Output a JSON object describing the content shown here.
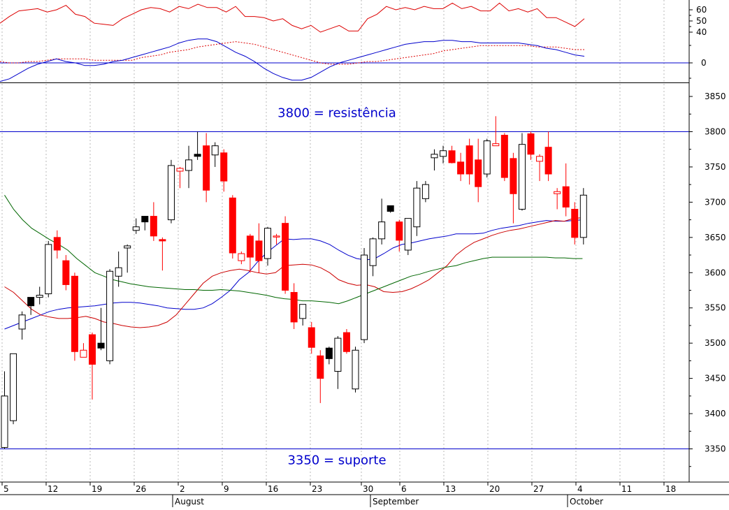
{
  "chart_data": [
    {
      "type": "line",
      "panel": "oscillator",
      "y_ticks_upper": [
        60,
        50,
        40
      ],
      "y_ticks_lower": [
        0
      ],
      "grid": "vertical dotted",
      "series": [
        {
          "name": "",
          "color": "#dd0000",
          "values": [
            48,
            54,
            59,
            60,
            61,
            58,
            60,
            64,
            56,
            54,
            48,
            47,
            46,
            52,
            56,
            60,
            62,
            61,
            58,
            63,
            61,
            65,
            62,
            62,
            58,
            63,
            54,
            54,
            53,
            50,
            52,
            46,
            43,
            46,
            40,
            43,
            46,
            41,
            41,
            52,
            56,
            63,
            60,
            62,
            60,
            63,
            61,
            61,
            66,
            61,
            63,
            59,
            59,
            66,
            59,
            61,
            58,
            61,
            53,
            53,
            49,
            45,
            52
          ]
        },
        {
          "name": "",
          "color": "#dd0000",
          "dashed": true,
          "values": [
            1,
            0,
            0,
            1,
            1,
            2,
            3,
            3,
            3,
            3,
            2,
            2,
            2,
            2,
            2,
            4,
            5,
            6,
            8,
            9,
            10,
            12,
            13,
            14,
            15,
            16,
            15,
            14,
            12,
            10,
            8,
            6,
            4,
            2,
            0,
            -1,
            -1,
            -1,
            0,
            1,
            1,
            2,
            3,
            4,
            5,
            6,
            7,
            9,
            10,
            11,
            12,
            13,
            13,
            13,
            13,
            13,
            13,
            12,
            12,
            12,
            11,
            10,
            10
          ]
        },
        {
          "name": "",
          "color": "#0000cc",
          "values": [
            -14,
            -12,
            -8,
            -4,
            -1,
            1,
            3,
            1,
            0,
            -2,
            -2,
            -1,
            1,
            2,
            4,
            6,
            8,
            10,
            12,
            15,
            17,
            18,
            18,
            16,
            12,
            8,
            5,
            1,
            -4,
            -8,
            -11,
            -13,
            -13,
            -11,
            -7,
            -3,
            0,
            2,
            4,
            6,
            8,
            10,
            12,
            14,
            15,
            16,
            16,
            17,
            17,
            16,
            16,
            15,
            15,
            15,
            15,
            15,
            14,
            13,
            11,
            10,
            8,
            6,
            5
          ]
        }
      ]
    },
    {
      "type": "candlestick",
      "panel": "price",
      "y_ticks": [
        3850,
        3800,
        3750,
        3700,
        3650,
        3600,
        3550,
        3500,
        3450,
        3400,
        3350
      ],
      "x_ticks": [
        "5",
        "12",
        "19",
        "26",
        "2",
        "9",
        "16",
        "23",
        "30",
        "6",
        "13",
        "20",
        "27",
        "4",
        "11",
        "18"
      ],
      "month_labels": [
        "August",
        "September",
        "October"
      ],
      "grid": "vertical dotted",
      "horizontal_lines": [
        {
          "value": 3800,
          "label": "3800 = resistência"
        },
        {
          "value": 3350,
          "label": "3350 = suporte"
        }
      ],
      "candles": [
        {
          "o": 3352,
          "h": 3460,
          "l": 3350,
          "c": 3425,
          "color": "white"
        },
        {
          "o": 3390,
          "h": 3485,
          "l": 3385,
          "c": 3485,
          "color": "white"
        },
        {
          "o": 3520,
          "h": 3545,
          "l": 3505,
          "c": 3540,
          "color": "white"
        },
        {
          "o": 3553,
          "h": 3565,
          "l": 3540,
          "c": 3565,
          "color": "black"
        },
        {
          "o": 3565,
          "h": 3580,
          "l": 3555,
          "c": 3568,
          "color": "white"
        },
        {
          "o": 3570,
          "h": 3645,
          "l": 3565,
          "c": 3640,
          "color": "white"
        },
        {
          "o": 3650,
          "h": 3660,
          "l": 3620,
          "c": 3632,
          "color": "red"
        },
        {
          "o": 3617,
          "h": 3625,
          "l": 3575,
          "c": 3583,
          "color": "red"
        },
        {
          "o": 3595,
          "h": 3600,
          "l": 3475,
          "c": 3488,
          "color": "red"
        },
        {
          "o": 3480,
          "h": 3500,
          "l": 3480,
          "c": 3490,
          "color": "redhollow"
        },
        {
          "o": 3512,
          "h": 3515,
          "l": 3420,
          "c": 3470,
          "color": "red"
        },
        {
          "o": 3493,
          "h": 3550,
          "l": 3490,
          "c": 3500,
          "color": "black"
        },
        {
          "o": 3475,
          "h": 3605,
          "l": 3470,
          "c": 3602,
          "color": "white"
        },
        {
          "o": 3595,
          "h": 3630,
          "l": 3580,
          "c": 3607,
          "color": "white"
        },
        {
          "o": 3635,
          "h": 3640,
          "l": 3600,
          "c": 3638,
          "color": "white"
        },
        {
          "o": 3660,
          "h": 3677,
          "l": 3655,
          "c": 3665,
          "color": "white"
        },
        {
          "o": 3672,
          "h": 3680,
          "l": 3660,
          "c": 3680,
          "color": "black"
        },
        {
          "o": 3680,
          "h": 3700,
          "l": 3645,
          "c": 3652,
          "color": "red"
        },
        {
          "o": 3647,
          "h": 3650,
          "l": 3603,
          "c": 3645,
          "color": "red"
        },
        {
          "o": 3675,
          "h": 3760,
          "l": 3670,
          "c": 3752,
          "color": "white"
        },
        {
          "o": 3744,
          "h": 3750,
          "l": 3720,
          "c": 3748,
          "color": "redhollow"
        },
        {
          "o": 3745,
          "h": 3780,
          "l": 3720,
          "c": 3760,
          "color": "white"
        },
        {
          "o": 3765,
          "h": 3800,
          "l": 3760,
          "c": 3768,
          "color": "black"
        },
        {
          "o": 3780,
          "h": 3798,
          "l": 3700,
          "c": 3717,
          "color": "red"
        },
        {
          "o": 3767,
          "h": 3785,
          "l": 3750,
          "c": 3780,
          "color": "white"
        },
        {
          "o": 3770,
          "h": 3775,
          "l": 3715,
          "c": 3730,
          "color": "red"
        },
        {
          "o": 3706,
          "h": 3710,
          "l": 3620,
          "c": 3628,
          "color": "red"
        },
        {
          "o": 3617,
          "h": 3630,
          "l": 3612,
          "c": 3627,
          "color": "redhollow"
        },
        {
          "o": 3652,
          "h": 3655,
          "l": 3600,
          "c": 3622,
          "color": "red"
        },
        {
          "o": 3645,
          "h": 3670,
          "l": 3600,
          "c": 3617,
          "color": "red"
        },
        {
          "o": 3620,
          "h": 3665,
          "l": 3610,
          "c": 3663,
          "color": "white"
        },
        {
          "o": 3652,
          "h": 3655,
          "l": 3640,
          "c": 3652,
          "color": "redhollow"
        },
        {
          "o": 3670,
          "h": 3680,
          "l": 3570,
          "c": 3575,
          "color": "red"
        },
        {
          "o": 3572,
          "h": 3585,
          "l": 3520,
          "c": 3530,
          "color": "red"
        },
        {
          "o": 3535,
          "h": 3555,
          "l": 3525,
          "c": 3555,
          "color": "white"
        },
        {
          "o": 3522,
          "h": 3530,
          "l": 3485,
          "c": 3494,
          "color": "red"
        },
        {
          "o": 3482,
          "h": 3490,
          "l": 3415,
          "c": 3450,
          "color": "red"
        },
        {
          "o": 3493,
          "h": 3495,
          "l": 3470,
          "c": 3478,
          "color": "black"
        },
        {
          "o": 3460,
          "h": 3510,
          "l": 3435,
          "c": 3507,
          "color": "white"
        },
        {
          "o": 3515,
          "h": 3520,
          "l": 3485,
          "c": 3488,
          "color": "red"
        },
        {
          "o": 3435,
          "h": 3495,
          "l": 3430,
          "c": 3490,
          "color": "white"
        },
        {
          "o": 3505,
          "h": 3635,
          "l": 3500,
          "c": 3625,
          "color": "white"
        },
        {
          "o": 3610,
          "h": 3650,
          "l": 3595,
          "c": 3648,
          "color": "white"
        },
        {
          "o": 3648,
          "h": 3705,
          "l": 3640,
          "c": 3672,
          "color": "white"
        },
        {
          "o": 3695,
          "h": 3695,
          "l": 3685,
          "c": 3687,
          "color": "black"
        },
        {
          "o": 3672,
          "h": 3675,
          "l": 3630,
          "c": 3646,
          "color": "red"
        },
        {
          "o": 3632,
          "h": 3675,
          "l": 3625,
          "c": 3677,
          "color": "white"
        },
        {
          "o": 3665,
          "h": 3730,
          "l": 3652,
          "c": 3720,
          "color": "white"
        },
        {
          "o": 3705,
          "h": 3730,
          "l": 3700,
          "c": 3725,
          "color": "white"
        },
        {
          "o": 3763,
          "h": 3775,
          "l": 3745,
          "c": 3768,
          "color": "white"
        },
        {
          "o": 3765,
          "h": 3780,
          "l": 3755,
          "c": 3773,
          "color": "white"
        },
        {
          "o": 3773,
          "h": 3780,
          "l": 3755,
          "c": 3756,
          "color": "red"
        },
        {
          "o": 3757,
          "h": 3770,
          "l": 3730,
          "c": 3740,
          "color": "red"
        },
        {
          "o": 3780,
          "h": 3790,
          "l": 3725,
          "c": 3740,
          "color": "red"
        },
        {
          "o": 3760,
          "h": 3790,
          "l": 3700,
          "c": 3722,
          "color": "red"
        },
        {
          "o": 3740,
          "h": 3790,
          "l": 3735,
          "c": 3787,
          "color": "white"
        },
        {
          "o": 3783,
          "h": 3822,
          "l": 3780,
          "c": 3780,
          "color": "redhollow"
        },
        {
          "o": 3795,
          "h": 3798,
          "l": 3730,
          "c": 3735,
          "color": "red"
        },
        {
          "o": 3762,
          "h": 3770,
          "l": 3670,
          "c": 3712,
          "color": "red"
        },
        {
          "o": 3690,
          "h": 3798,
          "l": 3688,
          "c": 3782,
          "color": "white"
        },
        {
          "o": 3797,
          "h": 3800,
          "l": 3760,
          "c": 3768,
          "color": "red"
        },
        {
          "o": 3765,
          "h": 3768,
          "l": 3730,
          "c": 3758,
          "color": "redhollow"
        },
        {
          "o": 3778,
          "h": 3800,
          "l": 3730,
          "c": 3740,
          "color": "red"
        },
        {
          "o": 3715,
          "h": 3720,
          "l": 3690,
          "c": 3712,
          "color": "redhollow"
        },
        {
          "o": 3722,
          "h": 3755,
          "l": 3680,
          "c": 3693,
          "color": "red"
        },
        {
          "o": 3690,
          "h": 3700,
          "l": 3640,
          "c": 3650,
          "color": "red"
        },
        {
          "o": 3650,
          "h": 3720,
          "l": 3640,
          "c": 3710,
          "color": "white"
        }
      ],
      "moving_averages": [
        {
          "name": "",
          "color": "#0000cc",
          "values": [
            3520,
            3525,
            3530,
            3535,
            3540,
            3545,
            3548,
            3550,
            3551,
            3552,
            3553,
            3555,
            3557,
            3558,
            3558,
            3557,
            3555,
            3553,
            3550,
            3549,
            3548,
            3548,
            3550,
            3556,
            3565,
            3575,
            3590,
            3600,
            3615,
            3628,
            3638,
            3648,
            3647,
            3648,
            3648,
            3645,
            3640,
            3632,
            3625,
            3620,
            3618,
            3620,
            3627,
            3635,
            3640,
            3642,
            3645,
            3648,
            3650,
            3652,
            3655,
            3655,
            3655,
            3656,
            3660,
            3663,
            3665,
            3667,
            3670,
            3672,
            3674,
            3673,
            3673,
            3674,
            3675
          ]
        },
        {
          "name": "",
          "color": "#cc0000",
          "values": [
            3580,
            3572,
            3560,
            3548,
            3540,
            3537,
            3535,
            3535,
            3536,
            3538,
            3535,
            3530,
            3528,
            3525,
            3523,
            3522,
            3523,
            3525,
            3530,
            3540,
            3555,
            3570,
            3585,
            3595,
            3600,
            3603,
            3605,
            3603,
            3600,
            3598,
            3600,
            3610,
            3611,
            3612,
            3611,
            3607,
            3600,
            3590,
            3585,
            3582,
            3583,
            3580,
            3573,
            3572,
            3573,
            3577,
            3583,
            3590,
            3600,
            3610,
            3625,
            3635,
            3643,
            3648,
            3653,
            3657,
            3660,
            3662,
            3665,
            3668,
            3671,
            3674,
            3673,
            3677,
            3678
          ]
        },
        {
          "name": "",
          "color": "#006600",
          "values": [
            3710,
            3690,
            3675,
            3663,
            3655,
            3647,
            3640,
            3632,
            3620,
            3610,
            3600,
            3595,
            3590,
            3587,
            3584,
            3582,
            3580,
            3579,
            3578,
            3577,
            3576,
            3576,
            3575,
            3575,
            3576,
            3575,
            3574,
            3572,
            3570,
            3568,
            3565,
            3563,
            3562,
            3560,
            3560,
            3559,
            3558,
            3556,
            3560,
            3565,
            3570,
            3575,
            3580,
            3585,
            3590,
            3595,
            3598,
            3602,
            3605,
            3608,
            3610,
            3614,
            3617,
            3620,
            3622,
            3622,
            3622,
            3622,
            3622,
            3622,
            3622,
            3621,
            3621,
            3620,
            3620
          ]
        }
      ]
    }
  ]
}
